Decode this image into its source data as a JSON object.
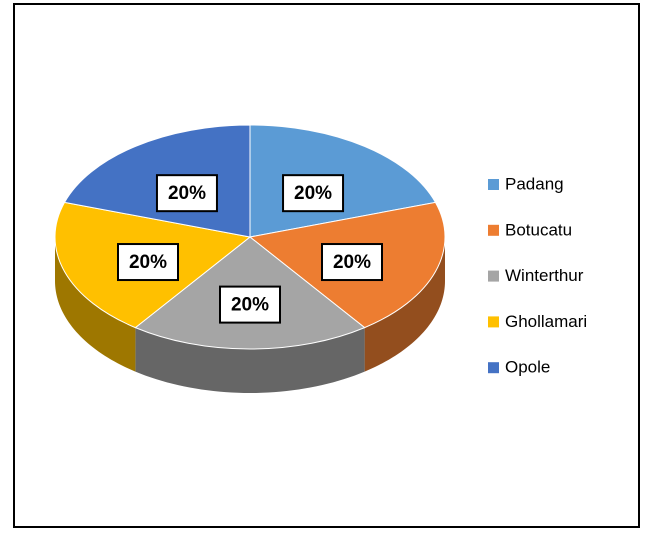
{
  "chart_data": {
    "type": "pie",
    "categories": [
      "Padang",
      "Botucatu",
      "Winterthur",
      "Ghollamari",
      "Opole"
    ],
    "values": [
      20,
      20,
      20,
      20,
      20
    ],
    "value_labels": [
      "20%",
      "20%",
      "20%",
      "20%",
      "20%"
    ],
    "colors": [
      "#5b9bd5",
      "#ed7d31",
      "#a5a5a5",
      "#ffc000",
      "#4472c4"
    ],
    "legend": "right"
  }
}
